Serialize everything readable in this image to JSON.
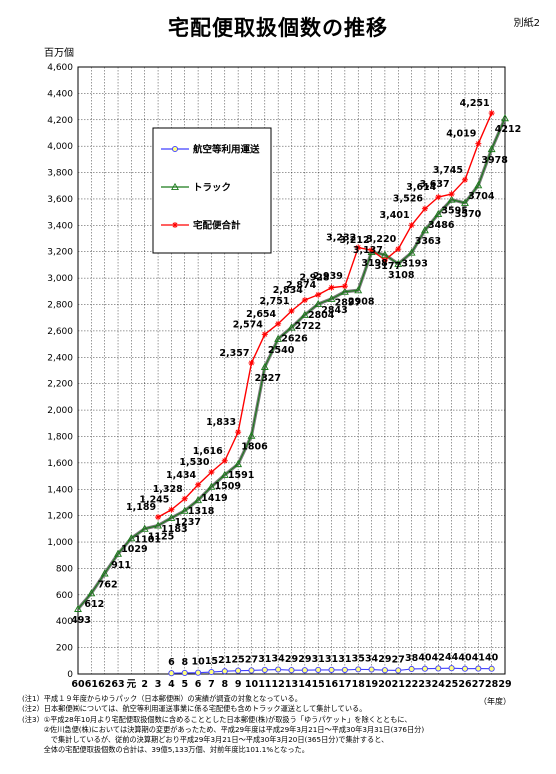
{
  "page": {
    "title": "宅配便取扱個数の推移",
    "doc_tag": "別紙2",
    "unit_label": "百万個",
    "year_unit": "（年度）"
  },
  "notes": [
    "(注1）平成１９年度からゆうパック（日本郵便㈱）の実績が調査の対象となっている。",
    "(注2）日本郵便㈱については、航空等利用運送事業に係る宅配便も含めトラック運送として集計している。",
    "(注3）①平成28年10月より宅配便取扱個数に含めることとした日本郵便(株)が取扱う「ゆうパケット」を除くとともに、",
    "　　　②佐川急便(株)においては決算期の変更があったため、平成29年度は平成29年3月21日～平成30年3月31日(376日分)",
    "　　　　で集計しているが、従前の決算期どおり平成29年3月21日～平成30年3月20日(365日分)で集計すると、",
    "　　　全体の宅配便取扱個数の合計は、39億5,133万個、対前年度比101.1%となった。"
  ],
  "chart_data": {
    "type": "line",
    "title": "宅配便取扱個数の推移",
    "ylabel": "百万個",
    "xlabel": "（年度）",
    "ylim": [
      0,
      4600
    ],
    "yticks": [
      0,
      200,
      400,
      600,
      800,
      1000,
      1200,
      1400,
      1600,
      1800,
      2000,
      2200,
      2400,
      2600,
      2800,
      3000,
      3200,
      3400,
      3600,
      3800,
      4000,
      4200,
      4400,
      4600
    ],
    "ytick_labels": [
      "0",
      "200",
      "400",
      "600",
      "800",
      "1,000",
      "1,200",
      "1,400",
      "1,600",
      "1,800",
      "2,000",
      "2,200",
      "2,400",
      "2,600",
      "2,800",
      "3,000",
      "3,200",
      "3,400",
      "3,600",
      "3,800",
      "4,000",
      "4,200",
      "4,400",
      "4,600"
    ],
    "grid": true,
    "legend_position": "upper-left inside plot",
    "categories": [
      "60",
      "61",
      "62",
      "63",
      "元",
      "2",
      "3",
      "4",
      "5",
      "6",
      "7",
      "8",
      "9",
      "10",
      "11",
      "12",
      "13",
      "14",
      "15",
      "16",
      "17",
      "18",
      "19",
      "20",
      "21",
      "22",
      "23",
      "24",
      "25",
      "26",
      "27",
      "28",
      "29"
    ],
    "series": [
      {
        "name": "航空等利用運送",
        "color": "#4040ff",
        "marker": "circle",
        "values": [
          null,
          null,
          null,
          null,
          null,
          null,
          null,
          6,
          8,
          10,
          15,
          21,
          25,
          27,
          31,
          34,
          29,
          29,
          31,
          31,
          31,
          35,
          34,
          29,
          27,
          38,
          40,
          42,
          44,
          40,
          41,
          40,
          null
        ],
        "labels": [
          null,
          null,
          null,
          null,
          null,
          null,
          null,
          "6",
          "8",
          "10",
          "15",
          "21",
          "25",
          "27",
          "31",
          "34",
          "29",
          "29",
          "31",
          "31",
          "31",
          "35",
          "34",
          "29",
          "27",
          "38",
          "40",
          "42",
          "44",
          "40",
          "41",
          "40",
          null
        ]
      },
      {
        "name": "トラック",
        "color": "#1a7a1a",
        "marker": "triangle",
        "values": [
          493,
          612,
          762,
          911,
          1029,
          1101,
          1125,
          1183,
          1237,
          1318,
          1419,
          1509,
          1591,
          1806,
          2327,
          2540,
          2626,
          2722,
          2804,
          2843,
          2897,
          2908,
          3198,
          3177,
          3108,
          3193,
          3363,
          3486,
          3595,
          3570,
          3704,
          3978,
          4212
        ],
        "labels": [
          "493",
          "612",
          "762",
          "911",
          "1029",
          "1101",
          "1125",
          "1183",
          "1237",
          "1318",
          "1419",
          "1509",
          "1591",
          "1806",
          "2327",
          "2540",
          "2626",
          "2722",
          "2804",
          "2843",
          "2897",
          "2908",
          "3198",
          "3177",
          "3108",
          "3193",
          "3363",
          "3486",
          "3595",
          "3570",
          "3704",
          "3978",
          "4212"
        ]
      },
      {
        "name": "宅配便合計",
        "color": "#ff0000",
        "marker": "asterisk",
        "values": [
          null,
          null,
          null,
          null,
          null,
          null,
          1189,
          1245,
          1328,
          1434,
          1530,
          1616,
          1833,
          2357,
          2574,
          2654,
          2751,
          2834,
          2874,
          2928,
          2939,
          3232,
          3212,
          3137,
          3220,
          3401,
          3526,
          3614,
          3637,
          3745,
          4019,
          4251,
          null
        ],
        "labels": [
          null,
          null,
          null,
          null,
          null,
          null,
          "1,189",
          "1,245",
          "1,328",
          "1,434",
          "1,530",
          "1,616",
          "1,833",
          "2,357",
          "2,574",
          "2,654",
          "2,751",
          "2,834",
          "2,874",
          "2,928",
          "2,939",
          "3,232",
          "3,212",
          "3,137",
          "3,220",
          "3,401",
          "3,526",
          "3,614",
          "3,637",
          "3,745",
          "4,019",
          "4,251",
          null
        ]
      }
    ]
  }
}
